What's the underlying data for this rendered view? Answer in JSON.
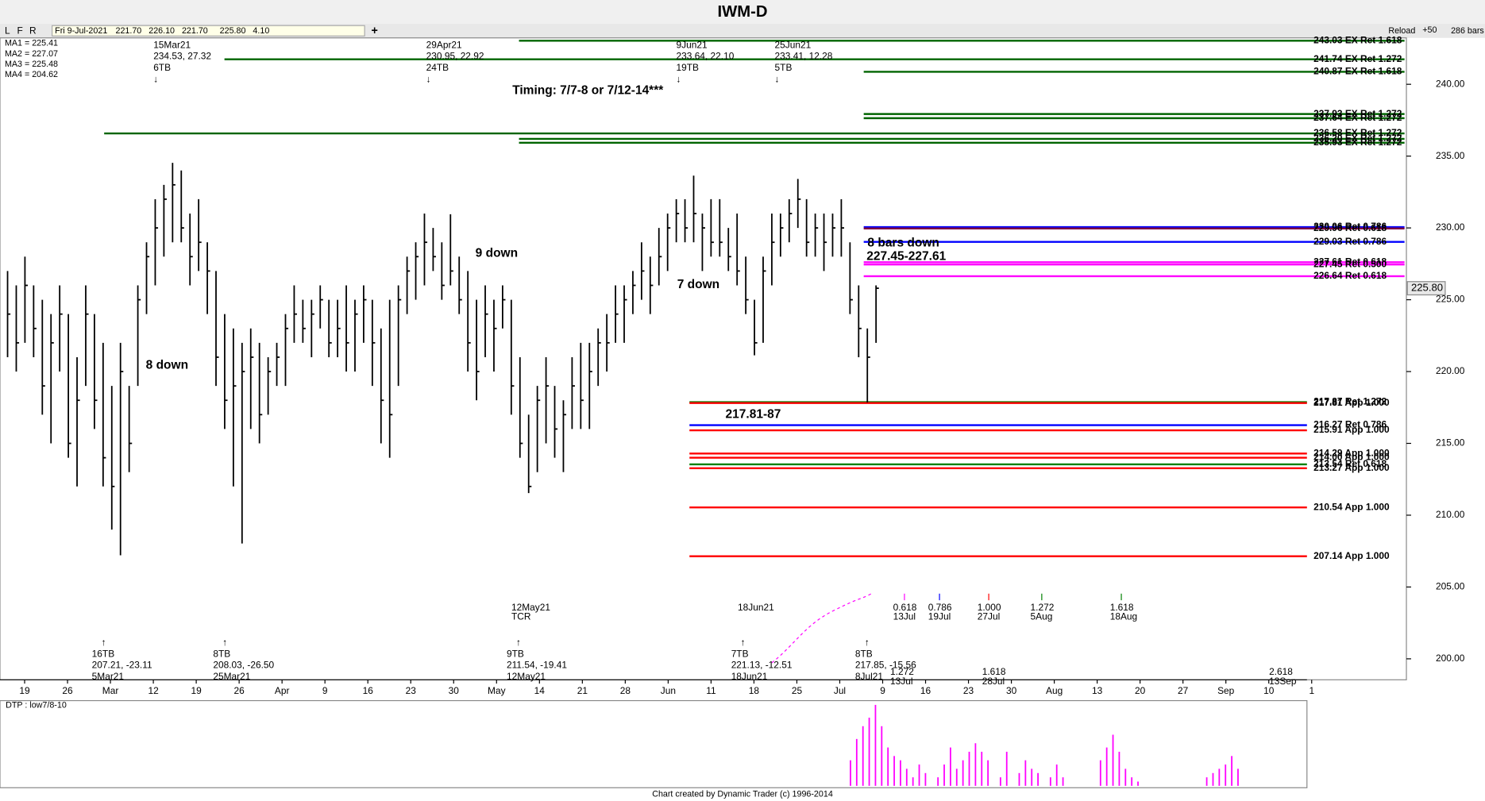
{
  "window": {
    "title": "IWM-D",
    "buttons": [
      "L",
      "F",
      "R"
    ],
    "plus": "+",
    "reload": "Reload",
    "step": "+50",
    "bars": "286 bars"
  },
  "header": {
    "date": "Fri 9-Jul-2021",
    "open": "221.70",
    "high": "226.10",
    "low": "221.70",
    "close": "225.80",
    "change": "4.10"
  },
  "ma_legend": [
    {
      "text": "MA1 = 225.41",
      "color": "#0000ff"
    },
    {
      "text": "MA2 = 227.07",
      "color": "#ff0000"
    },
    {
      "text": "MA3 = 225.48",
      "color": "#008000"
    },
    {
      "text": "MA4 = 204.62",
      "color": "#ff00ff"
    }
  ],
  "chart_data": {
    "type": "ohlc",
    "ylim": [
      198.54,
      243.23
    ],
    "yticks": [
      {
        "value": 200,
        "label": "200.00"
      },
      {
        "value": 205,
        "label": "205.00"
      },
      {
        "value": 210,
        "label": "210.00"
      },
      {
        "value": 215,
        "label": "215.00"
      },
      {
        "value": 220,
        "label": "220.00"
      },
      {
        "value": 225,
        "label": "225.00"
      },
      {
        "value": 230,
        "label": "230.00"
      },
      {
        "value": 235,
        "label": "235.00"
      },
      {
        "value": 240,
        "label": "240.00"
      }
    ],
    "last_price": {
      "value": 225.8,
      "label": "225.80"
    },
    "color": "#000000",
    "x_labels": [
      "19",
      "26",
      "Mar",
      "12",
      "19",
      "26",
      "Apr",
      "9",
      "16",
      "23",
      "30",
      "May",
      "14",
      "21",
      "28",
      "Jun",
      "11",
      "18",
      "25",
      "Jul",
      "9",
      "16",
      "23",
      "30",
      "Aug",
      "13",
      "20",
      "27",
      "Sep",
      "10",
      "1"
    ],
    "high": [
      227,
      226,
      228,
      226,
      225,
      224,
      226,
      224,
      221,
      226,
      224,
      222,
      219,
      222,
      219,
      226,
      229,
      232,
      233,
      234.53,
      234,
      231,
      232,
      229,
      227,
      224,
      223,
      222,
      223,
      222,
      221,
      222,
      224,
      226,
      225,
      225,
      226,
      225,
      225,
      226,
      225,
      226,
      225,
      223,
      225,
      226,
      228,
      229,
      231,
      230,
      229,
      230.95,
      228,
      227,
      225,
      226,
      225,
      226,
      225,
      221,
      217,
      219,
      221,
      219,
      218,
      221,
      222,
      222,
      223,
      224,
      226,
      226,
      227,
      229,
      228,
      230,
      231,
      232,
      232,
      233.64,
      231,
      232,
      232,
      230,
      231,
      228,
      225,
      228,
      231,
      231,
      232,
      233.41,
      232,
      231,
      231,
      231,
      232,
      229,
      226,
      223,
      226
    ],
    "low": [
      221,
      220,
      222,
      221,
      217,
      215,
      220,
      214,
      212,
      219,
      216,
      212,
      209,
      207.21,
      213,
      219,
      224,
      226,
      228,
      229,
      229,
      226,
      227,
      224,
      219,
      216,
      212,
      208.03,
      216,
      215,
      217,
      219,
      219,
      222,
      222,
      221,
      223,
      221,
      221,
      220,
      220,
      222,
      219,
      215,
      214,
      219,
      224,
      225,
      226,
      227,
      225,
      226,
      224,
      220,
      218,
      221,
      220,
      223,
      217,
      214,
      211.54,
      213,
      215,
      214,
      213,
      216,
      216,
      216,
      219,
      220,
      222,
      222,
      224,
      225,
      224,
      226,
      227,
      229,
      229,
      229,
      227,
      228,
      228,
      227,
      226,
      224,
      221.13,
      222,
      226,
      228,
      229,
      230,
      228,
      228,
      227,
      228,
      228,
      224,
      221,
      217.85,
      222
    ],
    "close": [
      224,
      222,
      226,
      223,
      219,
      222,
      224,
      215,
      218,
      224,
      218,
      214,
      212,
      220,
      215,
      225,
      228,
      230,
      232,
      233,
      230,
      228,
      229,
      227,
      221,
      218,
      219,
      220,
      221,
      217,
      220,
      221,
      223,
      224,
      223,
      224,
      225,
      222,
      223,
      222,
      224,
      225,
      222,
      218,
      217,
      225,
      227,
      228,
      229,
      228,
      226,
      227,
      225,
      222,
      220,
      224,
      223,
      225,
      219,
      215,
      212,
      218,
      219,
      216,
      217,
      219,
      218,
      220,
      222,
      222,
      224,
      225,
      226,
      227,
      226,
      228,
      230,
      231,
      230,
      231,
      230,
      229,
      229,
      228,
      227,
      225,
      222,
      227,
      229,
      230,
      231,
      232,
      229,
      230,
      229,
      230,
      230,
      225,
      223,
      221,
      225.8
    ],
    "levels": [
      {
        "value": 243.03,
        "label": "243.03 EX Ret 1.618",
        "color": "#006400"
      },
      {
        "value": 241.74,
        "label": "241.74 EX Ret 1.272",
        "color": "#006400"
      },
      {
        "value": 240.87,
        "label": "240.87 EX Ret 1.618",
        "color": "#006400"
      },
      {
        "value": 237.93,
        "label": "237.93 EX Ret 1.272",
        "color": "#006400"
      },
      {
        "value": 237.64,
        "label": "237.64 EX Ret 1.272",
        "color": "#006400"
      },
      {
        "value": 236.58,
        "label": "236.58 EX Ret 1.272",
        "color": "#006400"
      },
      {
        "value": 236.2,
        "label": "236.20 EX Ret 1.272",
        "color": "#006400"
      },
      {
        "value": 235.93,
        "label": "235.93 EX Ret 1.272",
        "color": "#006400"
      },
      {
        "value": 230.06,
        "label": "230.06 Ret 0.786",
        "color": "#0000ff"
      },
      {
        "value": 229.96,
        "label": "229.96 Ret 0.618",
        "color": "#800040"
      },
      {
        "value": 229.03,
        "label": "229.03 Ret 0.786",
        "color": "#0000ff"
      },
      {
        "value": 227.61,
        "label": "227.61 Ret 0.618",
        "color": "#ff00ff"
      },
      {
        "value": 227.45,
        "label": "227.45 Ret 0.500",
        "color": "#ff00ff"
      },
      {
        "value": 226.64,
        "label": "226.64 Ret 0.618",
        "color": "#ff00ff"
      },
      {
        "value": 217.87,
        "label": "217.87 Ret 1.272",
        "color": "#008000"
      },
      {
        "value": 217.81,
        "label": "217.81 App 1.000",
        "color": "#ff0000"
      },
      {
        "value": 216.27,
        "label": "216.27 Ret 0.786",
        "color": "#0000ff"
      },
      {
        "value": 215.91,
        "label": "215.91 App 1.000",
        "color": "#ff0000"
      },
      {
        "value": 214.29,
        "label": "214.29 App 1.000",
        "color": "#ff0000"
      },
      {
        "value": 214.0,
        "label": "214.00 App 1.000",
        "color": "#ff0000"
      },
      {
        "value": 213.54,
        "label": "213.54 Ret 0.618",
        "color": "#008000"
      },
      {
        "value": 213.27,
        "label": "213.27 App 1.000",
        "color": "#ff0000"
      },
      {
        "value": 210.54,
        "label": "210.54 App 1.000",
        "color": "#ff0000"
      },
      {
        "value": 207.14,
        "label": "207.14 App 1.000",
        "color": "#ff0000"
      }
    ]
  },
  "swings_top": [
    {
      "lines": [
        "15Mar21",
        "234.53, 27.32",
        "6TB",
        "↓"
      ]
    },
    {
      "lines": [
        "29Apr21",
        "230.95, 22.92",
        "24TB",
        "↓"
      ]
    },
    {
      "lines": [
        "9Jun21",
        "233.64, 22.10",
        "19TB",
        "↓"
      ]
    },
    {
      "lines": [
        "25Jun21",
        "233.41, 12.28",
        "5TB",
        "↓"
      ]
    }
  ],
  "swings_bottom": [
    {
      "lines": [
        "↑",
        "16TB",
        "207.21, -23.11",
        "5Mar21"
      ]
    },
    {
      "lines": [
        "↑",
        "8TB",
        "208.03, -26.50",
        "25Mar21"
      ]
    },
    {
      "lines": [
        "↑",
        "9TB",
        "211.54, -19.41",
        "12May21"
      ]
    },
    {
      "lines": [
        "↑",
        "7TB",
        "221.13, -12.51",
        "18Jun21"
      ]
    },
    {
      "lines": [
        "↑",
        "8TB",
        "217.85, -15.56",
        "8Jul21"
      ]
    }
  ],
  "notes": [
    "Timing: 7/7-8 or 7/12-14***",
    "9 down",
    "8 down",
    "7 down",
    "8 bars down",
    "227.45-227.61",
    "217.81-87"
  ],
  "markers": [
    {
      "lines": [
        "12May21",
        "TCR"
      ]
    },
    {
      "lines": [
        "18Jun21"
      ]
    }
  ],
  "time_projections": [
    {
      "ratio": "0.618",
      "date": "13Jul",
      "color": "#ff00ff"
    },
    {
      "ratio": "0.786",
      "date": "19Jul",
      "color": "#0000ff"
    },
    {
      "ratio": "1.000",
      "date": "27Jul",
      "color": "#ff0000"
    },
    {
      "ratio": "1.272",
      "date": "5Aug",
      "color": "#008000"
    },
    {
      "ratio": "1.618",
      "date": "18Aug",
      "color": "#008000"
    }
  ],
  "time_projections_low": [
    {
      "ratio": "1.272",
      "date": "13Jul",
      "color": "#008000"
    },
    {
      "ratio": "1.618",
      "date": "28Jul",
      "color": "#008000"
    },
    {
      "ratio": "2.618",
      "date": "13Sep",
      "color": "#000000"
    }
  ],
  "dtp_panel": {
    "label": "DTP : low7/8-10",
    "color": "#ff00ff",
    "values": [
      30,
      55,
      70,
      80,
      95,
      70,
      45,
      35,
      30,
      20,
      10,
      25,
      15,
      0,
      10,
      25,
      45,
      20,
      30,
      40,
      50,
      40,
      30,
      0,
      10,
      40,
      0,
      15,
      30,
      20,
      15,
      0,
      10,
      25,
      10,
      0,
      0,
      0,
      0,
      0,
      30,
      45,
      60,
      40,
      20,
      10,
      5,
      0,
      0,
      0,
      0,
      0,
      0,
      0,
      0,
      0,
      0,
      10,
      15,
      20,
      25,
      35,
      20
    ]
  },
  "footer": "Chart created by Dynamic Trader  (c)  1996-2014"
}
